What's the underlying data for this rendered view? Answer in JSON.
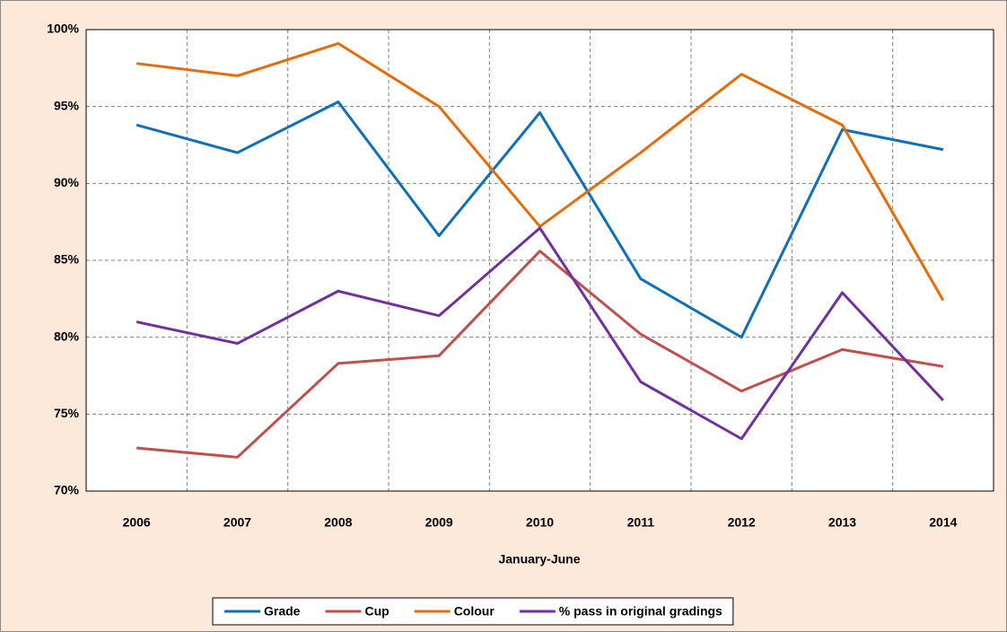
{
  "chart_data": {
    "type": "line",
    "x_label": "January-June",
    "categories": [
      "2006",
      "2007",
      "2008",
      "2009",
      "2010",
      "2011",
      "2012",
      "2013",
      "2014"
    ],
    "series": [
      {
        "name": "Grade",
        "color": "#0f6fb9",
        "values": [
          93.8,
          92.0,
          95.3,
          86.6,
          94.6,
          83.8,
          80.0,
          93.5,
          92.2
        ]
      },
      {
        "name": "Cup",
        "color": "#c0504d",
        "values": [
          72.8,
          72.2,
          78.3,
          78.8,
          85.6,
          80.2,
          76.5,
          79.2,
          78.1
        ]
      },
      {
        "name": "Colour",
        "color": "#e46c0a",
        "values": [
          97.8,
          97.0,
          99.1,
          95.0,
          87.2,
          92.0,
          97.1,
          93.8,
          82.4
        ]
      },
      {
        "name": "% pass in original gradings",
        "color": "#7030a0",
        "values": [
          81.0,
          79.6,
          83.0,
          81.4,
          87.1,
          77.1,
          73.4,
          82.9,
          75.9
        ]
      }
    ],
    "ylim": [
      70,
      100
    ],
    "yticks": [
      {
        "value": 70,
        "label": "70%"
      },
      {
        "value": 75,
        "label": "75%"
      },
      {
        "value": 80,
        "label": "80%"
      },
      {
        "value": 85,
        "label": "85%"
      },
      {
        "value": 90,
        "label": "90%"
      },
      {
        "value": 95,
        "label": "95%"
      },
      {
        "value": 100,
        "label": "100%"
      }
    ],
    "grid": true,
    "legend": "bottom"
  }
}
